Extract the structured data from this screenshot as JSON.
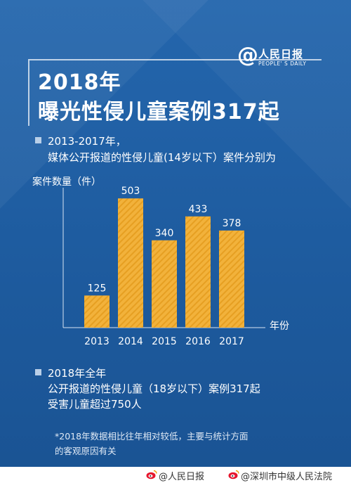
{
  "logo": {
    "at": "@",
    "name": "人民日报",
    "en": "PEOPLE' S DAILY"
  },
  "title": {
    "line1": "2018年",
    "line2": "曝光性侵儿童案例317起"
  },
  "intro": {
    "line1": "2013-2017年，",
    "line2": "媒体公开报道的性侵儿童(14岁以下）案件分别为"
  },
  "chart_data": {
    "type": "bar",
    "categories": [
      "2013",
      "2014",
      "2015",
      "2016",
      "2017"
    ],
    "values": [
      125,
      503,
      340,
      433,
      378
    ],
    "ylabel": "案件数量（件）",
    "xlabel": "年份",
    "ylim": [
      0,
      520
    ],
    "grid": false,
    "bar_color": "#f2b23b",
    "bar_stripe_color": "#e69f22"
  },
  "summary": {
    "line1": "2018年全年",
    "line2": "公开报道的性侵儿童（18岁以下）案例317起",
    "line3": "受害儿童超过750人"
  },
  "note": {
    "line1": "*2018年数据相比往年相对较低，主要与统计方面",
    "line2": "的客观原因有关"
  },
  "footer": {
    "left": "@人民日报",
    "right": "@深圳市中级人民法院"
  },
  "colors": {
    "background": "#1f5fa3",
    "accent": "#f2b23b",
    "text": "#ffffff"
  }
}
